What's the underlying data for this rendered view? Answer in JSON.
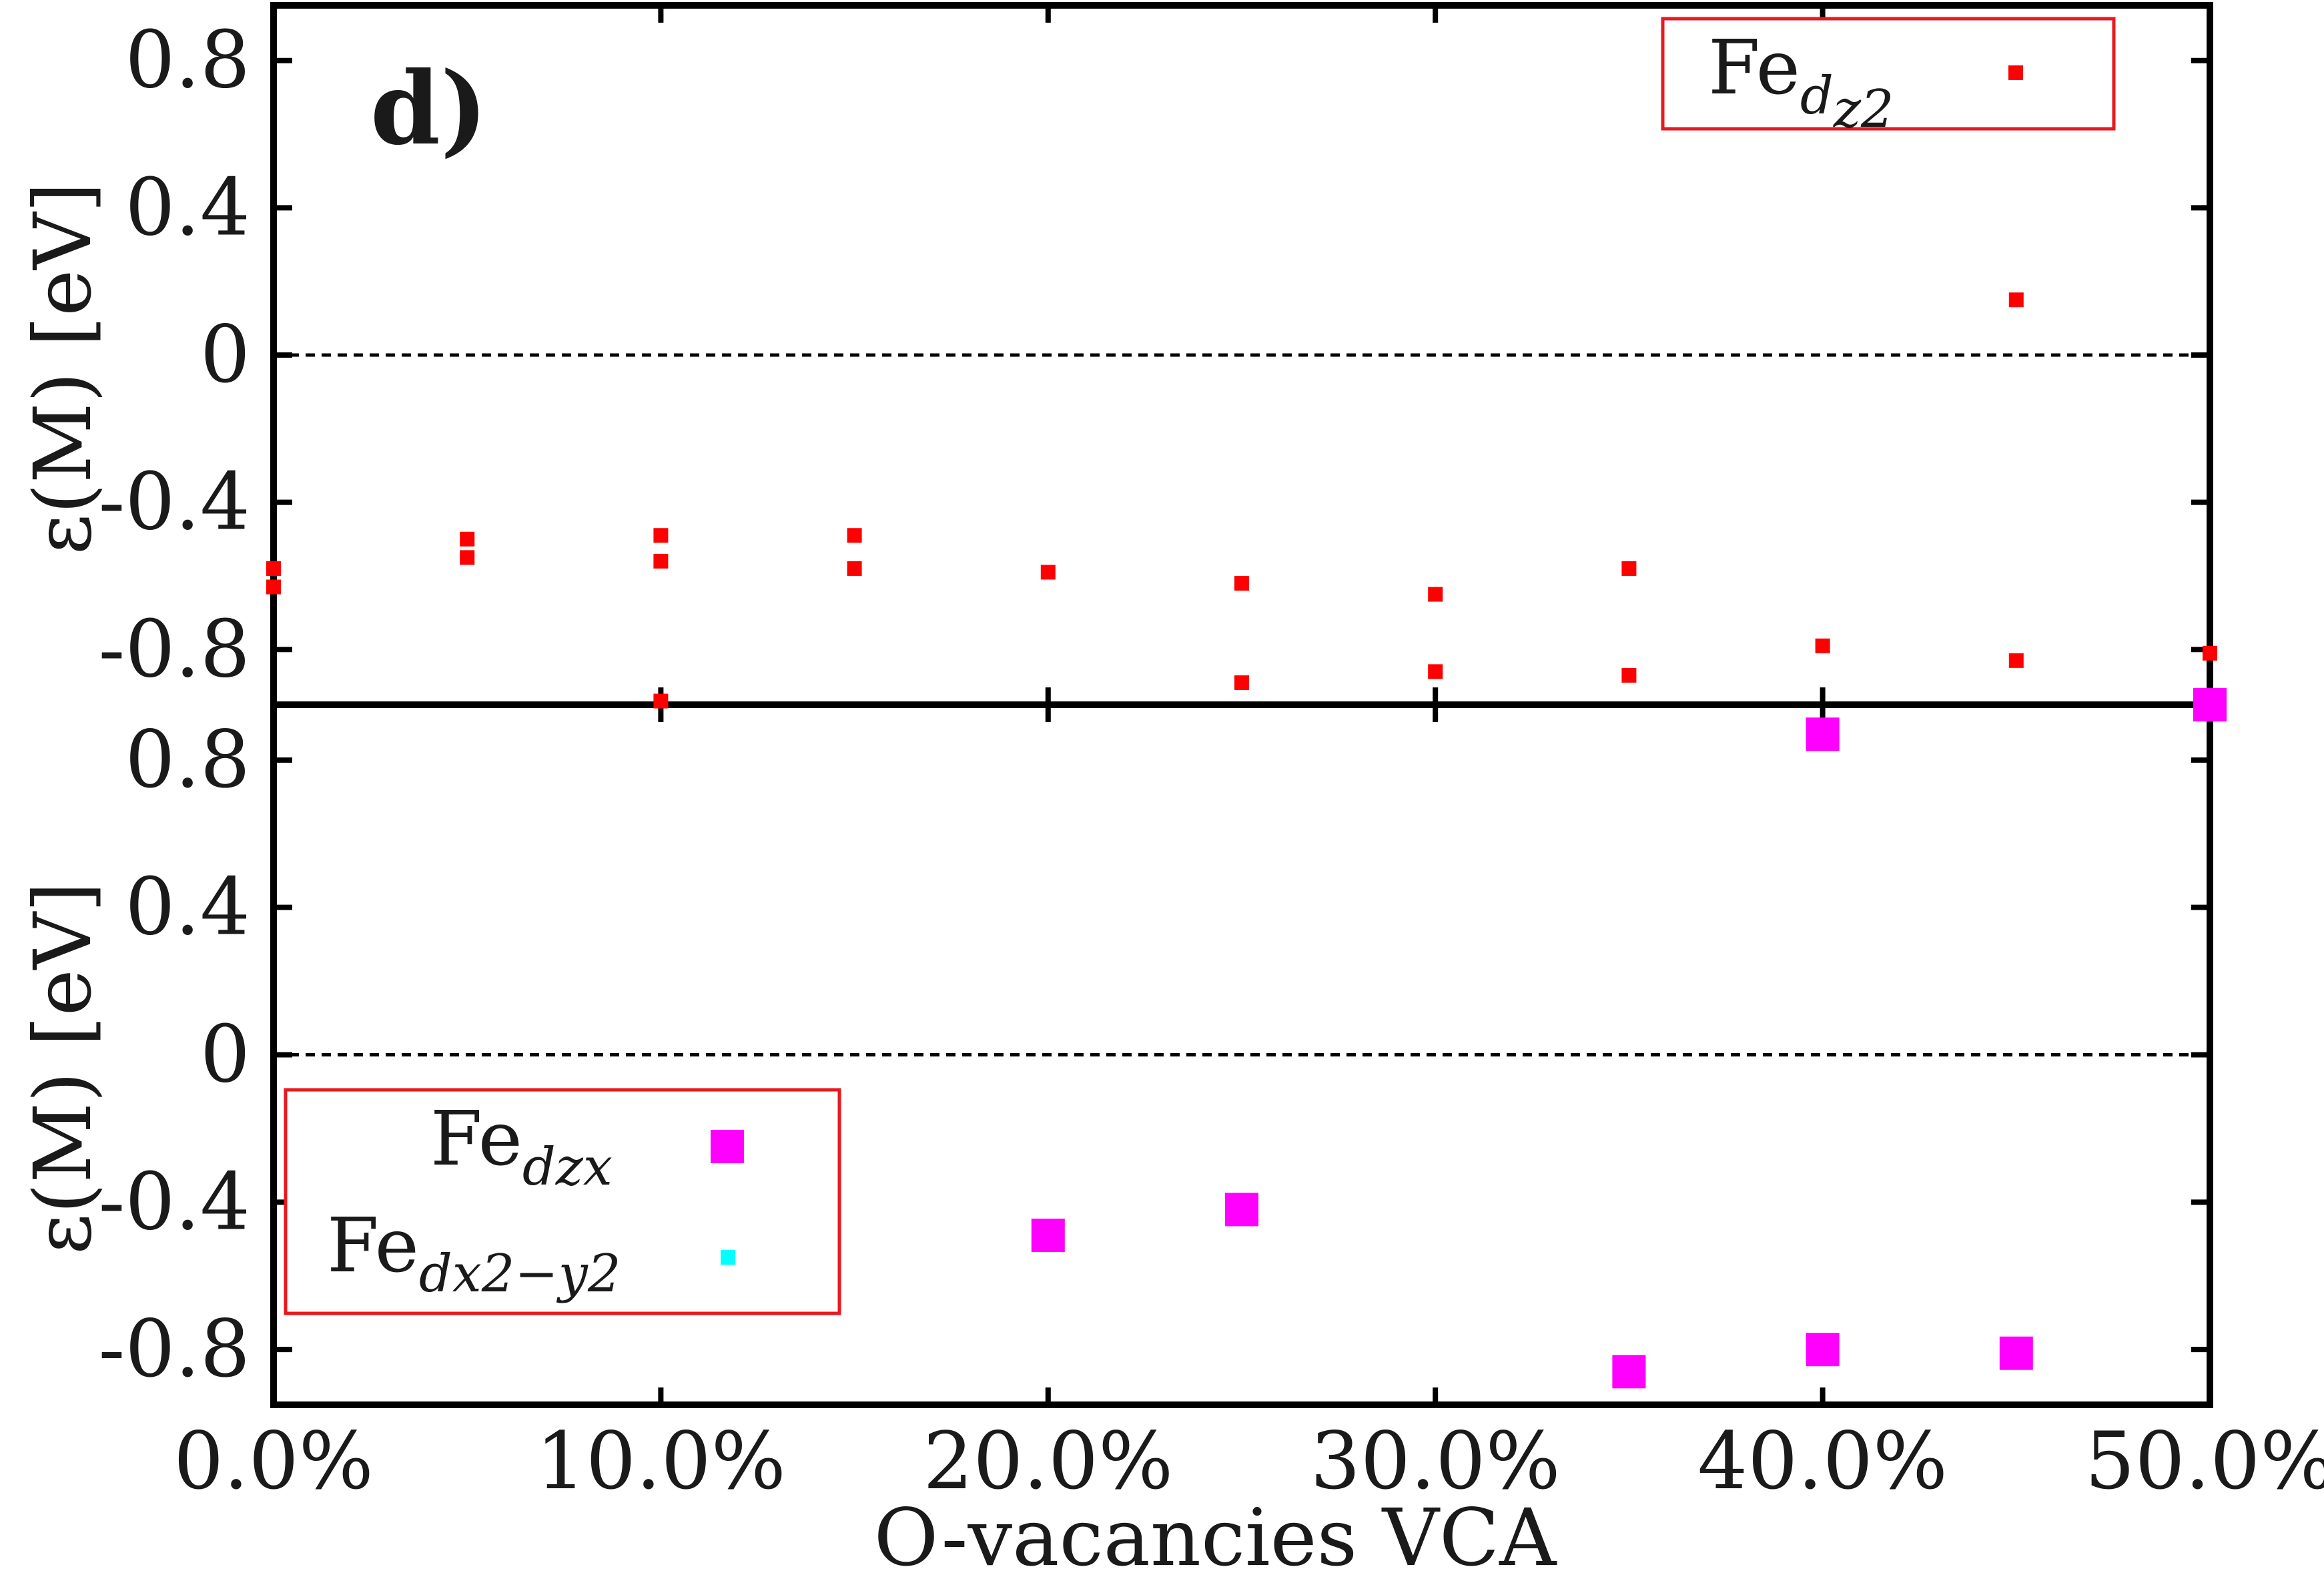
{
  "chart_data": [
    {
      "type": "scatter",
      "panel": "top",
      "panel_label": "d)",
      "ylabel": "ε(M) [eV]",
      "xlabel": "",
      "ylim": [
        -0.95,
        0.95
      ],
      "xlim": [
        0,
        50
      ],
      "yticks": [
        "0.8",
        "0.4",
        "0",
        "-0.4",
        "-0.8"
      ],
      "yticks_values": [
        0.8,
        0.4,
        0,
        -0.4,
        -0.8
      ],
      "zero_line": true,
      "legend_position": "top-right",
      "series": [
        {
          "name": "Fe",
          "name_subscript": "d",
          "name_subsubscript": "z2",
          "color": "#ff0000",
          "marker": "small-square",
          "points": [
            {
              "x": 0,
              "y": -0.58
            },
            {
              "x": 0,
              "y": -0.63
            },
            {
              "x": 5,
              "y": -0.5
            },
            {
              "x": 5,
              "y": -0.55
            },
            {
              "x": 10,
              "y": -0.49
            },
            {
              "x": 10,
              "y": -0.56
            },
            {
              "x": 10,
              "y": -0.94
            },
            {
              "x": 15,
              "y": -0.49
            },
            {
              "x": 15,
              "y": -0.58
            },
            {
              "x": 20,
              "y": -0.59
            },
            {
              "x": 25,
              "y": -0.62
            },
            {
              "x": 25,
              "y": -0.89
            },
            {
              "x": 30,
              "y": -0.65
            },
            {
              "x": 30,
              "y": -0.86
            },
            {
              "x": 35,
              "y": -0.58
            },
            {
              "x": 35,
              "y": -0.87
            },
            {
              "x": 40,
              "y": -0.79
            },
            {
              "x": 45,
              "y": 0.15
            },
            {
              "x": 45,
              "y": -0.83
            },
            {
              "x": 50,
              "y": -0.81
            }
          ]
        }
      ]
    },
    {
      "type": "scatter",
      "panel": "bottom",
      "ylabel": "ε(M) [eV]",
      "xlabel": "O-vacancies VCA",
      "ylim": [
        -0.95,
        0.95
      ],
      "xlim": [
        0,
        50
      ],
      "yticks": [
        "0.8",
        "0.4",
        "0",
        "-0.4",
        "-0.8"
      ],
      "yticks_values": [
        0.8,
        0.4,
        0,
        -0.4,
        -0.8
      ],
      "xticks": [
        "0.0%",
        "10.0%",
        "20.0%",
        "30.0%",
        "40.0%",
        "50.0%"
      ],
      "xticks_values": [
        0,
        10,
        20,
        30,
        40,
        50
      ],
      "zero_line": true,
      "legend_position": "bottom-left",
      "series": [
        {
          "name": "Fe",
          "name_subscript": "dzx",
          "color": "#ff00ff",
          "marker": "large-square",
          "points": [
            {
              "x": 20,
              "y": -0.49
            },
            {
              "x": 25,
              "y": -0.42
            },
            {
              "x": 35,
              "y": -0.86
            },
            {
              "x": 40,
              "y": 0.87
            },
            {
              "x": 40,
              "y": -0.8
            },
            {
              "x": 45,
              "y": -0.81
            },
            {
              "x": 50,
              "y": 0.95
            }
          ]
        },
        {
          "name": "Fe",
          "name_subscript": "dx2−y2",
          "color": "#00ffff",
          "marker": "small-square",
          "points": []
        }
      ]
    }
  ]
}
